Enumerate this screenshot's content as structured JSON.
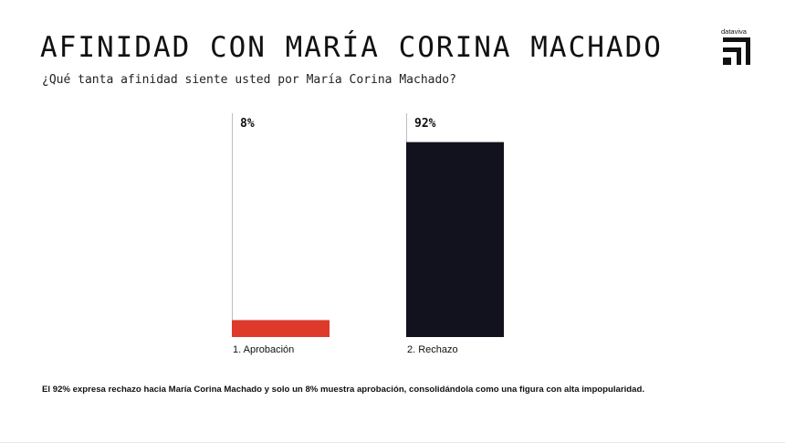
{
  "header": {
    "title": "AFINIDAD CON MARÍA CORINA MACHADO",
    "subtitle": "¿Qué tanta afinidad siente usted por María Corina Machado?"
  },
  "brand": {
    "name": "dataviva"
  },
  "chart_data": {
    "type": "bar",
    "title": "AFINIDAD CON MARÍA CORINA MACHADO",
    "subtitle": "¿Qué tanta afinidad siente usted por María Corina Machado?",
    "categories": [
      "1. Aprobación",
      "2. Rechazo"
    ],
    "values": [
      8,
      92
    ],
    "value_labels": [
      "8%",
      "92%"
    ],
    "ylim": [
      0,
      100
    ],
    "colors": [
      "#dd3a2c",
      "#12111e"
    ],
    "grid": false,
    "legend": "none"
  },
  "footnote": "El 92% expresa rechazo hacia María Corina Machado y solo un 8% muestra aprobación, consolidándola como una figura con alta impopularidad."
}
